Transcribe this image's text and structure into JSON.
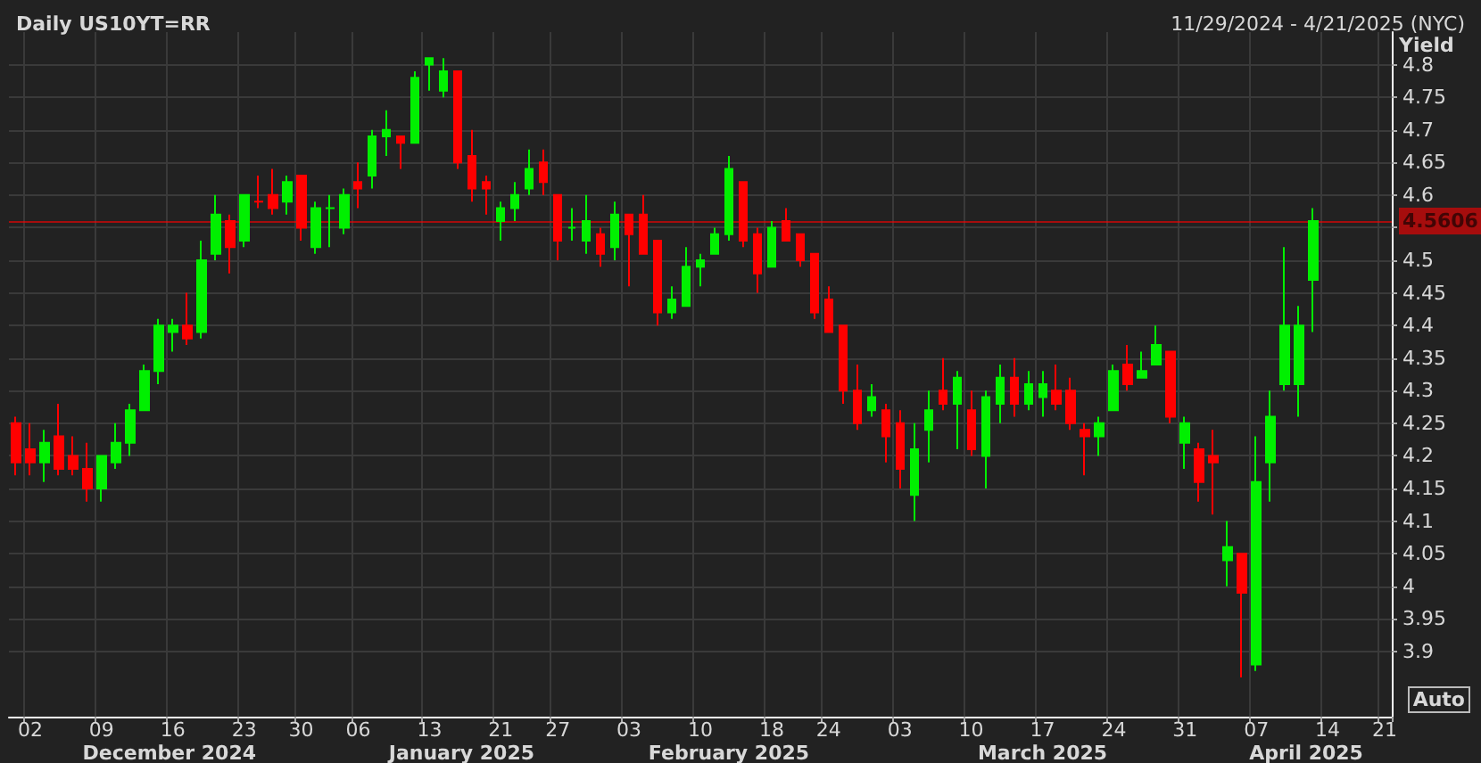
{
  "chart_data": {
    "type": "candlestick",
    "title": "Daily US10YT=RR",
    "subtitle": "11/29/2024 - 4/21/2025 (NYC)",
    "ylabel": "Yield",
    "categories": [
      null,
      "02",
      null,
      null,
      null,
      null,
      "09",
      null,
      null,
      null,
      null,
      "16",
      null,
      null,
      null,
      null,
      "23",
      null,
      null,
      null,
      "30",
      null,
      null,
      null,
      "06",
      null,
      null,
      null,
      null,
      "13",
      null,
      null,
      null,
      null,
      "21",
      null,
      null,
      null,
      "27",
      null,
      null,
      null,
      null,
      "03",
      null,
      null,
      null,
      null,
      "10",
      null,
      null,
      null,
      null,
      "18",
      null,
      null,
      null,
      "24",
      null,
      null,
      null,
      null,
      "03",
      null,
      null,
      null,
      null,
      "10",
      null,
      null,
      null,
      null,
      "17",
      null,
      null,
      null,
      null,
      "24",
      null,
      null,
      null,
      null,
      "31",
      null,
      null,
      null,
      null,
      "07",
      null,
      null,
      null,
      null,
      "14",
      null,
      null,
      null,
      "21"
    ],
    "ohlc": [
      [
        4.25,
        4.26,
        4.17,
        4.19
      ],
      [
        4.21,
        4.25,
        4.17,
        4.19
      ],
      [
        4.19,
        4.24,
        4.16,
        4.22
      ],
      [
        4.23,
        4.28,
        4.17,
        4.18
      ],
      [
        4.2,
        4.23,
        4.17,
        4.18
      ],
      [
        4.18,
        4.22,
        4.13,
        4.15
      ],
      [
        4.15,
        4.2,
        4.13,
        4.2
      ],
      [
        4.19,
        4.25,
        4.18,
        4.22
      ],
      [
        4.22,
        4.28,
        4.2,
        4.27
      ],
      [
        4.27,
        4.34,
        4.27,
        4.33
      ],
      [
        4.33,
        4.41,
        4.31,
        4.4
      ],
      [
        4.39,
        4.41,
        4.36,
        4.4
      ],
      [
        4.4,
        4.45,
        4.37,
        4.38
      ],
      [
        4.39,
        4.53,
        4.38,
        4.5
      ],
      [
        4.51,
        4.6,
        4.5,
        4.57
      ],
      [
        4.56,
        4.57,
        4.48,
        4.52
      ],
      [
        4.53,
        4.6,
        4.52,
        4.6
      ],
      [
        4.59,
        4.63,
        4.58,
        4.59
      ],
      [
        4.6,
        4.64,
        4.57,
        4.58
      ],
      [
        4.59,
        4.63,
        4.57,
        4.62
      ],
      [
        4.63,
        4.63,
        4.53,
        4.55
      ],
      [
        4.52,
        4.59,
        4.51,
        4.58
      ],
      [
        4.58,
        4.6,
        4.52,
        4.58
      ],
      [
        4.55,
        4.61,
        4.54,
        4.6
      ],
      [
        4.62,
        4.65,
        4.58,
        4.61
      ],
      [
        4.63,
        4.7,
        4.61,
        4.69
      ],
      [
        4.69,
        4.73,
        4.66,
        4.7
      ],
      [
        4.69,
        4.69,
        4.64,
        4.68
      ],
      [
        4.68,
        4.79,
        4.68,
        4.78
      ],
      [
        4.8,
        4.81,
        4.76,
        4.81
      ],
      [
        4.76,
        4.81,
        4.75,
        4.79
      ],
      [
        4.79,
        4.79,
        4.64,
        4.65
      ],
      [
        4.66,
        4.7,
        4.59,
        4.61
      ],
      [
        4.62,
        4.63,
        4.57,
        4.61
      ],
      [
        4.56,
        4.59,
        4.53,
        4.58
      ],
      [
        4.58,
        4.62,
        4.56,
        4.6
      ],
      [
        4.61,
        4.67,
        4.6,
        4.64
      ],
      [
        4.65,
        4.67,
        4.6,
        4.62
      ],
      [
        4.6,
        4.6,
        4.5,
        4.53
      ],
      [
        4.55,
        4.58,
        4.53,
        4.55
      ],
      [
        4.53,
        4.6,
        4.51,
        4.56
      ],
      [
        4.54,
        4.55,
        4.49,
        4.51
      ],
      [
        4.52,
        4.59,
        4.5,
        4.57
      ],
      [
        4.57,
        4.57,
        4.46,
        4.54
      ],
      [
        4.57,
        4.6,
        4.51,
        4.51
      ],
      [
        4.53,
        4.53,
        4.4,
        4.42
      ],
      [
        4.42,
        4.46,
        4.41,
        4.44
      ],
      [
        4.43,
        4.52,
        4.43,
        4.49
      ],
      [
        4.49,
        4.51,
        4.46,
        4.5
      ],
      [
        4.51,
        4.55,
        4.51,
        4.54
      ],
      [
        4.54,
        4.66,
        4.53,
        4.64
      ],
      [
        4.62,
        4.62,
        4.52,
        4.53
      ],
      [
        4.54,
        4.55,
        4.45,
        4.48
      ],
      [
        4.49,
        4.56,
        4.49,
        4.55
      ],
      [
        4.56,
        4.58,
        4.53,
        4.53
      ],
      [
        4.54,
        4.54,
        4.49,
        4.5
      ],
      [
        4.51,
        4.51,
        4.41,
        4.42
      ],
      [
        4.44,
        4.46,
        4.39,
        4.39
      ],
      [
        4.4,
        4.4,
        4.28,
        4.3
      ],
      [
        4.3,
        4.34,
        4.24,
        4.25
      ],
      [
        4.27,
        4.31,
        4.26,
        4.29
      ],
      [
        4.27,
        4.28,
        4.19,
        4.23
      ],
      [
        4.25,
        4.27,
        4.15,
        4.18
      ],
      [
        4.14,
        4.25,
        4.1,
        4.21
      ],
      [
        4.24,
        4.3,
        4.19,
        4.27
      ],
      [
        4.3,
        4.35,
        4.27,
        4.28
      ],
      [
        4.28,
        4.33,
        4.21,
        4.32
      ],
      [
        4.27,
        4.3,
        4.2,
        4.21
      ],
      [
        4.2,
        4.3,
        4.15,
        4.29
      ],
      [
        4.28,
        4.34,
        4.25,
        4.32
      ],
      [
        4.32,
        4.35,
        4.26,
        4.28
      ],
      [
        4.28,
        4.33,
        4.27,
        4.31
      ],
      [
        4.29,
        4.33,
        4.26,
        4.31
      ],
      [
        4.3,
        4.34,
        4.27,
        4.28
      ],
      [
        4.3,
        4.32,
        4.24,
        4.25
      ],
      [
        4.24,
        4.25,
        4.17,
        4.23
      ],
      [
        4.23,
        4.26,
        4.2,
        4.25
      ],
      [
        4.27,
        4.34,
        4.27,
        4.33
      ],
      [
        4.34,
        4.37,
        4.3,
        4.31
      ],
      [
        4.32,
        4.36,
        4.32,
        4.33
      ],
      [
        4.34,
        4.4,
        4.34,
        4.37
      ],
      [
        4.36,
        4.36,
        4.25,
        4.26
      ],
      [
        4.22,
        4.26,
        4.18,
        4.25
      ],
      [
        4.21,
        4.22,
        4.13,
        4.16
      ],
      [
        4.2,
        4.24,
        4.11,
        4.19
      ],
      [
        4.04,
        4.1,
        4,
        4.06
      ],
      [
        4.05,
        4.05,
        3.86,
        3.99
      ],
      [
        3.88,
        4.23,
        3.87,
        4.16
      ],
      [
        4.19,
        4.3,
        4.13,
        4.26
      ],
      [
        4.31,
        4.52,
        4.3,
        4.4
      ],
      [
        4.31,
        4.43,
        4.26,
        4.4
      ],
      [
        4.47,
        4.58,
        4.39,
        4.56
      ],
      null,
      null,
      null,
      null,
      null
    ],
    "ylim": [
      3.8,
      4.85
    ],
    "yticks": [
      3.9,
      3.95,
      4,
      4.05,
      4.1,
      4.15,
      4.2,
      4.25,
      4.3,
      4.35,
      4.4,
      4.45,
      4.5,
      {
        "value": 4.55,
        "label": null
      },
      4.6,
      4.65,
      4.7,
      4.75,
      4.8
    ],
    "grid": true,
    "ref_lines": [
      {
        "axis": "y",
        "value": 4.5606,
        "label": "4.5606",
        "color": "#ff0000"
      }
    ],
    "annotations": [
      "December 2024",
      "January 2025",
      "February 2025",
      "March 2025",
      "April 2025",
      "Auto"
    ]
  }
}
